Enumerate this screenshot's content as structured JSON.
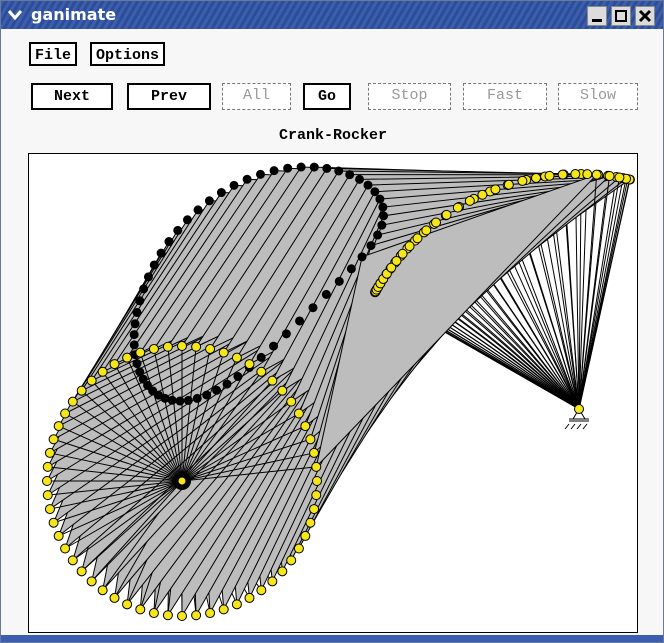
{
  "window": {
    "title": "ganimate"
  },
  "menu": [
    "File",
    "Options"
  ],
  "buttons": [
    {
      "label": "Next",
      "enabled": true
    },
    {
      "label": "Prev",
      "enabled": true
    },
    {
      "label": "All",
      "enabled": false
    },
    {
      "label": "Go",
      "enabled": true
    },
    {
      "label": "Stop",
      "enabled": false
    },
    {
      "label": "Fast",
      "enabled": false
    },
    {
      "label": "Slow",
      "enabled": false
    }
  ],
  "canvas": {
    "title": "Crank-Rocker"
  }
}
